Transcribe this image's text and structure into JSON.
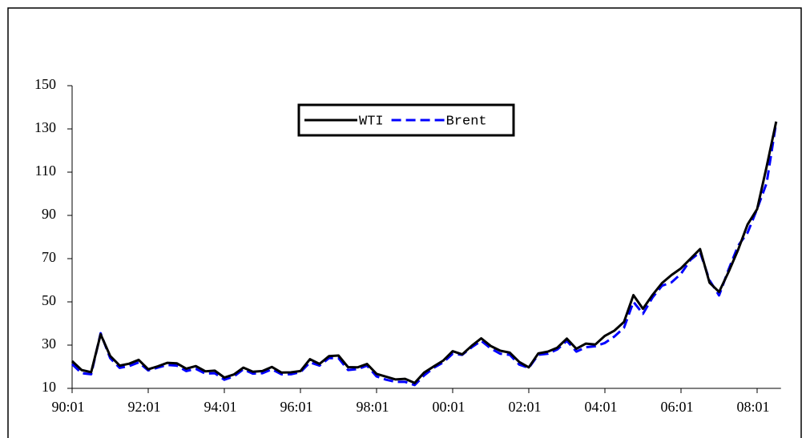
{
  "chart_data": {
    "type": "line",
    "categories": [
      "90:01",
      null,
      null,
      null,
      null,
      null,
      null,
      null,
      "92:01",
      null,
      null,
      null,
      null,
      null,
      null,
      null,
      "94:01",
      null,
      null,
      null,
      null,
      null,
      null,
      null,
      "96:01",
      null,
      null,
      null,
      null,
      null,
      null,
      null,
      "98:01",
      null,
      null,
      null,
      null,
      null,
      null,
      null,
      "00:01",
      null,
      null,
      null,
      null,
      null,
      null,
      null,
      "02:01",
      null,
      null,
      null,
      null,
      null,
      null,
      null,
      "04:01",
      null,
      null,
      null,
      null,
      null,
      null,
      null,
      "06:01",
      null,
      null,
      null,
      null,
      null,
      null,
      null,
      "08:01",
      null,
      null
    ],
    "series": [
      {
        "name": "WTI",
        "color": "#000000",
        "dash": false,
        "values": [
          22.6,
          18.5,
          17.5,
          35.0,
          25.0,
          20.5,
          21.4,
          23.2,
          18.8,
          20.2,
          21.8,
          21.6,
          19.1,
          20.3,
          17.9,
          18.2,
          15.0,
          16.4,
          19.6,
          17.7,
          18.0,
          19.9,
          17.3,
          17.4,
          18.0,
          23.5,
          21.3,
          24.9,
          25.2,
          19.8,
          19.7,
          21.3,
          16.7,
          15.4,
          14.1,
          14.4,
          12.5,
          17.3,
          20.1,
          22.8,
          27.2,
          25.7,
          29.7,
          33.1,
          29.6,
          27.4,
          26.5,
          22.2,
          19.7,
          26.2,
          27.0,
          28.8,
          33.0,
          28.3,
          30.7,
          30.3,
          34.3,
          36.7,
          40.7,
          53.1,
          46.8,
          53.2,
          58.7,
          62.4,
          65.5,
          70.0,
          74.4,
          58.9,
          54.6,
          63.9,
          74.1,
          85.8,
          92.9,
          112.6,
          133.4
        ]
      },
      {
        "name": "Brent",
        "color": "#0000ff",
        "dash": true,
        "values": [
          21.2,
          17.0,
          16.5,
          35.5,
          24.0,
          19.5,
          20.3,
          22.0,
          18.3,
          19.6,
          20.8,
          20.5,
          18.0,
          19.0,
          16.8,
          17.0,
          14.0,
          15.5,
          18.8,
          16.8,
          17.0,
          18.8,
          16.5,
          16.5,
          17.5,
          22.0,
          20.5,
          24.0,
          24.0,
          18.5,
          18.9,
          20.5,
          15.5,
          14.0,
          13.0,
          13.0,
          11.5,
          16.0,
          19.5,
          22.0,
          26.0,
          25.5,
          29.0,
          32.0,
          28.5,
          26.0,
          25.5,
          21.0,
          19.5,
          25.5,
          26.0,
          28.0,
          32.0,
          27.0,
          29.0,
          29.5,
          31.0,
          34.0,
          38.0,
          50.0,
          44.5,
          52.0,
          57.5,
          59.0,
          63.0,
          69.5,
          73.0,
          60.0,
          53.0,
          65.0,
          76.0,
          82.0,
          93.0,
          105.0,
          133.0
        ]
      }
    ],
    "ylim": [
      10,
      150
    ],
    "yticks": [
      10,
      30,
      50,
      70,
      90,
      110,
      130,
      150
    ],
    "legend": "top"
  }
}
